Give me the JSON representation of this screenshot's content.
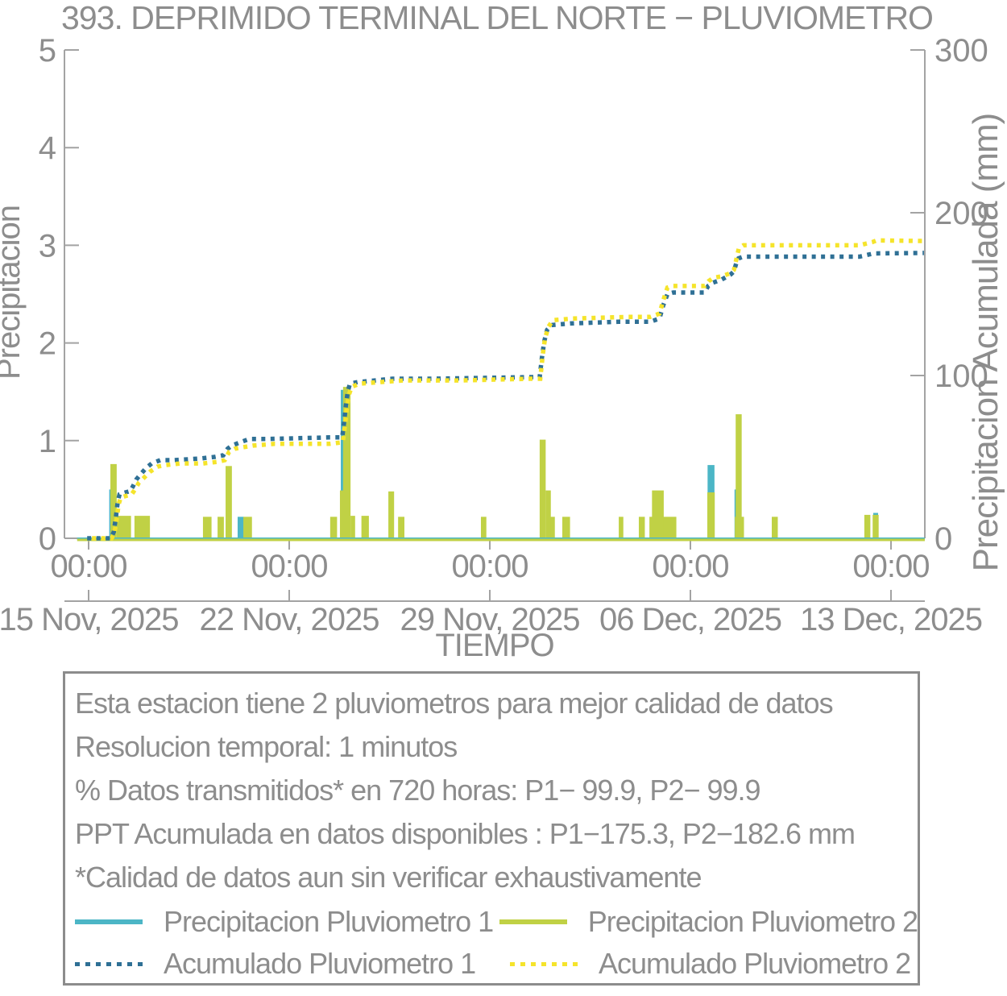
{
  "title": "393. DEPRIMIDO TERMINAL DEL NORTE − PLUVIOMETRO",
  "colors": {
    "precip1": "#4cb6c6",
    "precip2": "#c0d145",
    "accum1": "#2f7095",
    "accum2": "#f5e42b",
    "text_gray": "#8d8d8d",
    "axis_gray": "#a3a3a3"
  },
  "chart_data": {
    "type": "bar",
    "title": "393. DEPRIMIDO TERMINAL DEL NORTE − PLUVIOMETRO",
    "x_label": "TIEMPO",
    "y_left": {
      "label": "Precipitacion",
      "min": 0,
      "max": 5,
      "ticks": [
        "0",
        "1",
        "2",
        "3",
        "4",
        "5"
      ]
    },
    "y_right": {
      "label": "Precipitacion Acumulada (mm)",
      "min": 0,
      "max": 300,
      "ticks": [
        "0",
        "100",
        "200",
        "300"
      ]
    },
    "x_domain_days": [
      -0.85,
      29.2
    ],
    "x_ticks": [
      {
        "day": 0,
        "time": "00:00",
        "date": "15 Nov, 2025"
      },
      {
        "day": 7,
        "time": "00:00",
        "date": "22 Nov, 2025"
      },
      {
        "day": 14,
        "time": "00:00",
        "date": "29 Nov, 2025"
      },
      {
        "day": 21,
        "time": "00:00",
        "date": "06 Dec, 2025"
      },
      {
        "day": 28,
        "time": "00:00",
        "date": "13 Dec, 2025"
      }
    ],
    "series": [
      {
        "name": "Precipitacion Pluviometro 1",
        "kind": "bars",
        "color_key": "precip1",
        "zero_line_span_days": [
          -0.4,
          29.18
        ],
        "bars": [
          [
            0.72,
            0.12,
            0.5
          ],
          [
            5.2,
            0.21,
            0.22
          ],
          [
            8.8,
            0.12,
            1.52
          ],
          [
            21.6,
            0.24,
            0.75
          ],
          [
            22.54,
            0.1,
            0.5
          ],
          [
            27.38,
            0.17,
            0.26
          ]
        ]
      },
      {
        "name": "Precipitacion Pluviometro 2",
        "kind": "bars",
        "color_key": "precip2",
        "zero_line_span_days": [
          -0.4,
          29.18
        ],
        "bars": [
          [
            0.76,
            0.22,
            0.76
          ],
          [
            0.98,
            0.5,
            0.23
          ],
          [
            1.6,
            0.54,
            0.23
          ],
          [
            3.99,
            0.3,
            0.22
          ],
          [
            4.5,
            0.22,
            0.22
          ],
          [
            4.78,
            0.22,
            0.74
          ],
          [
            5.4,
            0.3,
            0.22
          ],
          [
            8.43,
            0.24,
            0.22
          ],
          [
            8.77,
            0.2,
            0.49
          ],
          [
            8.88,
            0.26,
            1.55
          ],
          [
            9.14,
            0.16,
            0.23
          ],
          [
            9.52,
            0.26,
            0.23
          ],
          [
            10.46,
            0.2,
            0.48
          ],
          [
            10.8,
            0.22,
            0.22
          ],
          [
            13.69,
            0.19,
            0.22
          ],
          [
            15.74,
            0.21,
            1.01
          ],
          [
            15.95,
            0.18,
            0.49
          ],
          [
            16.12,
            0.15,
            0.22
          ],
          [
            16.53,
            0.27,
            0.22
          ],
          [
            18.5,
            0.16,
            0.22
          ],
          [
            19.2,
            0.21,
            0.22
          ],
          [
            19.57,
            0.94,
            0.22
          ],
          [
            19.66,
            0.41,
            0.49
          ],
          [
            21.59,
            0.26,
            0.47
          ],
          [
            22.55,
            0.32,
            0.22
          ],
          [
            22.58,
            0.21,
            1.27
          ],
          [
            23.84,
            0.21,
            0.22
          ],
          [
            27.07,
            0.21,
            0.24
          ],
          [
            27.36,
            0.21,
            0.24
          ]
        ]
      },
      {
        "name": "Acumulado Pluviometro 1",
        "kind": "dotted-line",
        "units": "mm",
        "color_key": "accum1",
        "final_mm": 175.3,
        "points": [
          [
            -0.05,
            0
          ],
          [
            0.78,
            0
          ],
          [
            0.88,
            4
          ],
          [
            0.96,
            14
          ],
          [
            1.02,
            23
          ],
          [
            1.08,
            27
          ],
          [
            1.25,
            28
          ],
          [
            1.45,
            29
          ],
          [
            1.55,
            32
          ],
          [
            1.66,
            36
          ],
          [
            1.8,
            39
          ],
          [
            2.0,
            43
          ],
          [
            2.2,
            46
          ],
          [
            2.5,
            48
          ],
          [
            3.0,
            48
          ],
          [
            3.9,
            49
          ],
          [
            4.4,
            50
          ],
          [
            4.7,
            51
          ],
          [
            4.85,
            55
          ],
          [
            5.0,
            57
          ],
          [
            5.3,
            59
          ],
          [
            5.6,
            61
          ],
          [
            6.2,
            61
          ],
          [
            8.4,
            62
          ],
          [
            8.85,
            62
          ],
          [
            8.92,
            72
          ],
          [
            8.98,
            82
          ],
          [
            9.04,
            90
          ],
          [
            9.12,
            95
          ],
          [
            9.4,
            96
          ],
          [
            10.0,
            97
          ],
          [
            10.6,
            98
          ],
          [
            12.0,
            98
          ],
          [
            15.4,
            99
          ],
          [
            15.74,
            99
          ],
          [
            15.82,
            111
          ],
          [
            15.9,
            121
          ],
          [
            16.0,
            128
          ],
          [
            16.15,
            131
          ],
          [
            16.8,
            132
          ],
          [
            18.5,
            133
          ],
          [
            19.6,
            133
          ],
          [
            19.92,
            135
          ],
          [
            20.05,
            143
          ],
          [
            20.2,
            150
          ],
          [
            20.4,
            151
          ],
          [
            21.5,
            151
          ],
          [
            21.62,
            155
          ],
          [
            21.78,
            157
          ],
          [
            22.1,
            159
          ],
          [
            22.4,
            162
          ],
          [
            22.52,
            164
          ],
          [
            22.6,
            169
          ],
          [
            22.68,
            172
          ],
          [
            22.85,
            173
          ],
          [
            26.9,
            173
          ],
          [
            27.15,
            174
          ],
          [
            27.4,
            175
          ],
          [
            29.15,
            175.3
          ]
        ]
      },
      {
        "name": "Acumulado Pluviometro 2",
        "kind": "dotted-line",
        "units": "mm",
        "color_key": "accum2",
        "final_mm": 182.6,
        "points": [
          [
            -0.05,
            0
          ],
          [
            0.8,
            0
          ],
          [
            0.9,
            3
          ],
          [
            0.98,
            12
          ],
          [
            1.05,
            21
          ],
          [
            1.12,
            25
          ],
          [
            1.3,
            26
          ],
          [
            1.5,
            27
          ],
          [
            1.62,
            30
          ],
          [
            1.75,
            34
          ],
          [
            1.92,
            37
          ],
          [
            2.15,
            41
          ],
          [
            2.4,
            44
          ],
          [
            2.7,
            45
          ],
          [
            3.2,
            46
          ],
          [
            4.0,
            46
          ],
          [
            4.5,
            47
          ],
          [
            4.75,
            48
          ],
          [
            4.9,
            53
          ],
          [
            5.1,
            55
          ],
          [
            5.4,
            56
          ],
          [
            5.75,
            57
          ],
          [
            6.5,
            58
          ],
          [
            8.4,
            58
          ],
          [
            8.87,
            59
          ],
          [
            8.95,
            70
          ],
          [
            9.01,
            80
          ],
          [
            9.08,
            88
          ],
          [
            9.18,
            93
          ],
          [
            9.45,
            95
          ],
          [
            10.2,
            96
          ],
          [
            11.0,
            97
          ],
          [
            13.0,
            97
          ],
          [
            15.4,
            98
          ],
          [
            15.76,
            98
          ],
          [
            15.85,
            113
          ],
          [
            15.93,
            123
          ],
          [
            16.05,
            130
          ],
          [
            16.2,
            134
          ],
          [
            16.9,
            135
          ],
          [
            18.8,
            136
          ],
          [
            19.6,
            136
          ],
          [
            19.92,
            138
          ],
          [
            20.05,
            146
          ],
          [
            20.2,
            154
          ],
          [
            20.4,
            155
          ],
          [
            21.5,
            155
          ],
          [
            21.64,
            158
          ],
          [
            21.8,
            160
          ],
          [
            22.1,
            161
          ],
          [
            22.42,
            163
          ],
          [
            22.52,
            165
          ],
          [
            22.61,
            172
          ],
          [
            22.69,
            178
          ],
          [
            22.85,
            180
          ],
          [
            26.9,
            180
          ],
          [
            27.12,
            181
          ],
          [
            27.35,
            182
          ],
          [
            27.5,
            183
          ],
          [
            29.15,
            182.6
          ]
        ]
      }
    ]
  },
  "info_box": {
    "lines": [
      "Esta estacion tiene 2 pluviometros para mejor calidad de datos",
      "Resolucion temporal: 1 minutos",
      "% Datos transmitidos* en 720 horas: P1− 99.9, P2− 99.9",
      "PPT Acumulada en datos disponibles : P1−175.3, P2−182.6 mm",
      "*Calidad de datos aun sin verificar exhaustivamente"
    ],
    "legend": [
      {
        "label": "Precipitacion Pluviometro 1",
        "swatch": "solid",
        "color_key": "precip1"
      },
      {
        "label": "Precipitacion Pluviometro 2",
        "swatch": "solid",
        "color_key": "precip2"
      },
      {
        "label": "Acumulado Pluviometro 1",
        "swatch": "dotted",
        "color_key": "accum1"
      },
      {
        "label": "Acumulado Pluviometro 2",
        "swatch": "dotted",
        "color_key": "accum2"
      }
    ]
  }
}
